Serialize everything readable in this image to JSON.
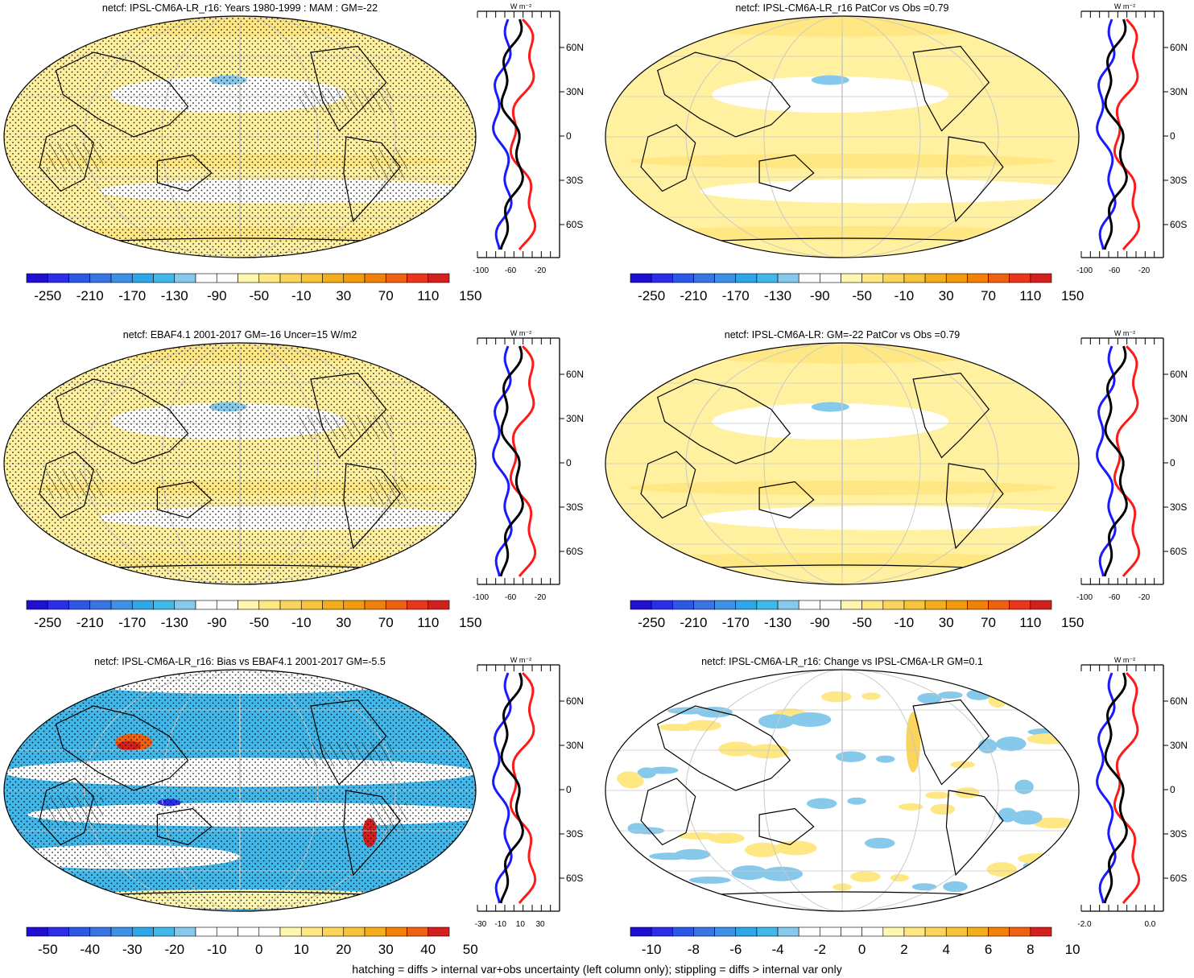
{
  "panels": [
    {
      "title": "netcf: IPSL-CM6A-LR_r16: Years 1980-1999 : MAM : GM=-22",
      "column": "left",
      "row": 1,
      "colorbar_labels": [
        "-250",
        "-210",
        "-170",
        "-130",
        "-90",
        "-50",
        "-10",
        "30",
        "70",
        "110",
        "150"
      ],
      "profile_x_labels": [
        "-100",
        "-60",
        "-20"
      ],
      "stippling": true,
      "hatching": true
    },
    {
      "title": "netcf: IPSL-CM6A-LR_r16 PatCor vs Obs =0.79",
      "column": "right",
      "row": 1,
      "colorbar_labels": [
        "-250",
        "-210",
        "-170",
        "-130",
        "-90",
        "-50",
        "-10",
        "30",
        "70",
        "110",
        "150"
      ],
      "profile_x_labels": [
        "-100",
        "-60",
        "-20"
      ],
      "stippling": false,
      "hatching": false
    },
    {
      "title": "netcf: EBAF4.1 2001-2017 GM=-16 Uncer=15 W/m2",
      "column": "left",
      "row": 2,
      "colorbar_labels": [
        "-250",
        "-210",
        "-170",
        "-130",
        "-90",
        "-50",
        "-10",
        "30",
        "70",
        "110",
        "150"
      ],
      "profile_x_labels": [
        "-100",
        "-60",
        "-20"
      ],
      "stippling": true,
      "hatching": true
    },
    {
      "title": "netcf: IPSL-CM6A-LR: GM=-22 PatCor vs Obs =0.79",
      "column": "right",
      "row": 2,
      "colorbar_labels": [
        "-250",
        "-210",
        "-170",
        "-130",
        "-90",
        "-50",
        "-10",
        "30",
        "70",
        "110",
        "150"
      ],
      "profile_x_labels": [
        "-100",
        "-60",
        "-20"
      ],
      "stippling": false,
      "hatching": false
    },
    {
      "title": "netcf: IPSL-CM6A-LR_r16: Bias vs EBAF4.1 2001-2017 GM=-5.5",
      "column": "left",
      "row": 3,
      "colorbar_labels": [
        "-50",
        "-40",
        "-30",
        "-20",
        "-10",
        "0",
        "10",
        "20",
        "30",
        "40",
        "50"
      ],
      "profile_x_labels": [
        "-30",
        "-10",
        "10",
        "30"
      ],
      "stippling": true,
      "hatching": true
    },
    {
      "title": "netcf: IPSL-CM6A-LR_r16: Change vs IPSL-CM6A-LR GM=0.1",
      "column": "right",
      "row": 3,
      "colorbar_labels": [
        "-10",
        "-8",
        "-6",
        "-4",
        "-2",
        "0",
        "2",
        "4",
        "6",
        "8",
        "10"
      ],
      "profile_x_labels": [
        "-2.0",
        "0.0"
      ],
      "stippling": false,
      "hatching": false
    }
  ],
  "profile_lat_labels": [
    "60N",
    "30N",
    "0",
    "30S",
    "60S"
  ],
  "profile_units": "W m⁻²",
  "abs_colors": [
    "#1f0fd0",
    "#2b2ee6",
    "#2f57e6",
    "#3a74e3",
    "#3e90e6",
    "#2ea6e8",
    "#42b7ea",
    "#87c9ea",
    "#ffffff",
    "#ffffff",
    "#fff6b0",
    "#ffe783",
    "#fbd55b",
    "#f7c43c",
    "#f4ad1c",
    "#f39a0e",
    "#f38009",
    "#ef6112",
    "#e9371d",
    "#d3201e"
  ],
  "diff_colors": [
    "#1f0fd0",
    "#2b2ee6",
    "#2f57e6",
    "#3a74e3",
    "#3e90e6",
    "#2ea6e8",
    "#42b7ea",
    "#87c9ea",
    "#ffffff",
    "#ffffff",
    "#ffffff",
    "#ffffff",
    "#fff6b0",
    "#ffe783",
    "#fbd55b",
    "#f7c43c",
    "#f4ad1c",
    "#f38009",
    "#ef6112",
    "#d3201e"
  ],
  "footer": "hatching = diffs > internal var+obs uncertainty (left column only); stippling = diffs > internal var only"
}
